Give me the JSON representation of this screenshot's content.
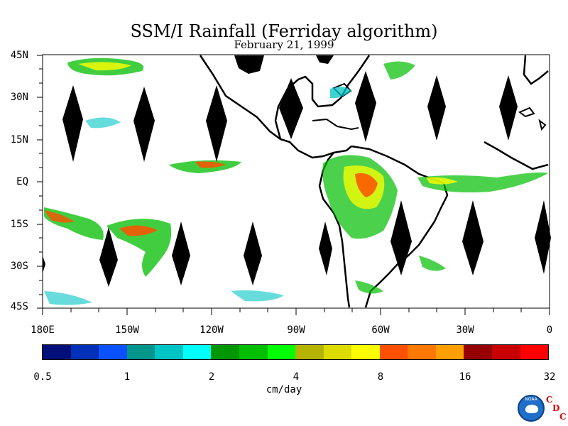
{
  "title": "SSM/I Rainfall (Ferriday algorithm)",
  "subtitle": "February 21, 1999",
  "lat_labels": [
    "45N",
    "30N",
    "15N",
    "EQ",
    "15S",
    "30S",
    "45S"
  ],
  "lon_labels": [
    "180E",
    "150W",
    "120W",
    "90W",
    "60W",
    "30W",
    "0"
  ],
  "colorbar": {
    "colors": [
      "#000f7a",
      "#0030b8",
      "#0a52ff",
      "#00968c",
      "#00c4c4",
      "#00ffff",
      "#009600",
      "#00be00",
      "#00ff00",
      "#b4b400",
      "#dcdc00",
      "#ffff00",
      "#ff5000",
      "#ff7800",
      "#ffa000",
      "#960000",
      "#c80000",
      "#ff0000"
    ],
    "tick_labels": [
      "0.5",
      "1",
      "2",
      "4",
      "8",
      "16",
      "32"
    ],
    "units": "cm/day"
  },
  "logo": {
    "name": "NOAA",
    "cdc_letters": [
      "C",
      "D",
      "C"
    ]
  }
}
